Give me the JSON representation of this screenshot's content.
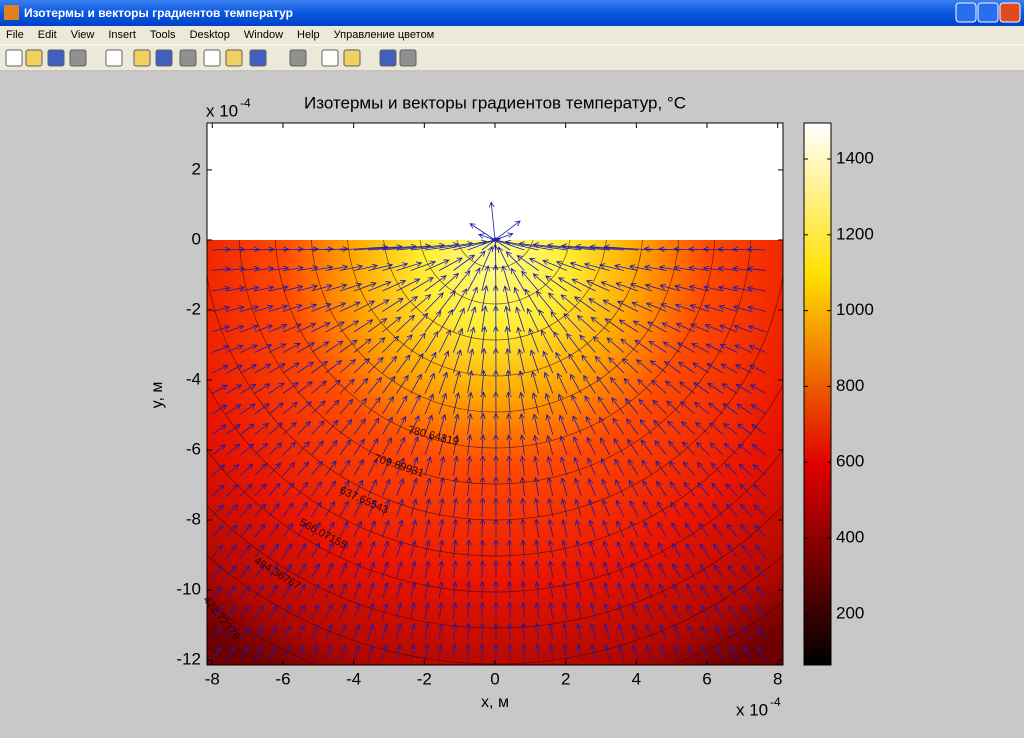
{
  "window": {
    "title": "Изотермы и векторы градиентов температур",
    "menu": [
      "File",
      "Edit",
      "View",
      "Insert",
      "Tools",
      "Desktop",
      "Window",
      "Help",
      "Управление цветом"
    ]
  },
  "chart_data": {
    "type": "contourf",
    "title": "Изотермы и векторы градиентов температур, °C",
    "xlabel": "x, м",
    "ylabel": "y, м",
    "x_multiplier": "x 10",
    "x_exponent": "-4",
    "y_multiplier": "x 10",
    "y_exponent": "-4",
    "xlim": [
      -8.15,
      8.15
    ],
    "xticks": [
      -8,
      -6,
      -4,
      -2,
      0,
      2,
      4,
      6,
      8
    ],
    "ylim": [
      -12.14,
      3.34
    ],
    "yticks": [
      -12,
      -10,
      -8,
      -6,
      -4,
      -2,
      0,
      2
    ],
    "colorbar": {
      "clim": [
        65,
        1495
      ],
      "ticks": [
        200,
        400,
        600,
        800,
        1000,
        1200,
        1400
      ]
    },
    "isotherm_labels": [
      "780.64319",
      "709.89931",
      "637.65543",
      "566.07155",
      "494.36767",
      "422.72379"
    ]
  }
}
